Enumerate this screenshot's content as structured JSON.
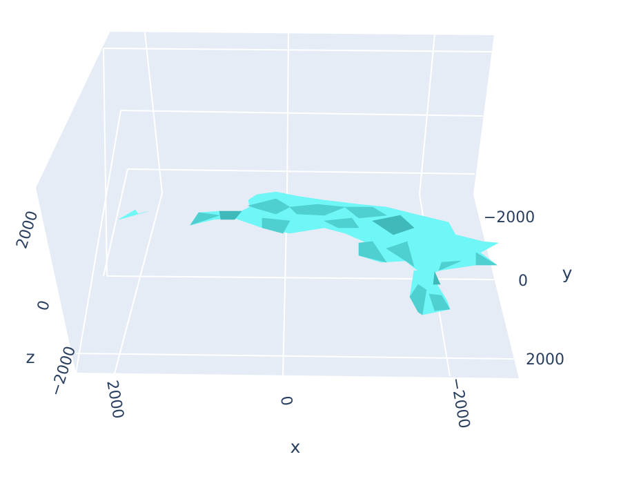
{
  "chart_data": {
    "type": "surface3d",
    "title": "",
    "trace_color": "#6ff6f6",
    "shade_color": "#4fcfcf",
    "dark_shade_color": "#3fb9b9",
    "background_color": "#e5ecf6",
    "grid_color": "#ffffff",
    "text_color": "#2a3f5f",
    "grid": true,
    "axes": {
      "x": {
        "title": "x",
        "ticks": [
          2000,
          0,
          -2000
        ],
        "tick_labels": [
          "2000",
          "0",
          "−2000"
        ]
      },
      "y": {
        "title": "y",
        "ticks": [
          -2000,
          0,
          2000
        ],
        "tick_labels": [
          "−2000",
          "0",
          "2000"
        ]
      },
      "z": {
        "title": "z",
        "ticks": [
          2000,
          0,
          -2000
        ],
        "tick_labels": [
          "2000",
          "0",
          "−2000"
        ]
      }
    }
  }
}
